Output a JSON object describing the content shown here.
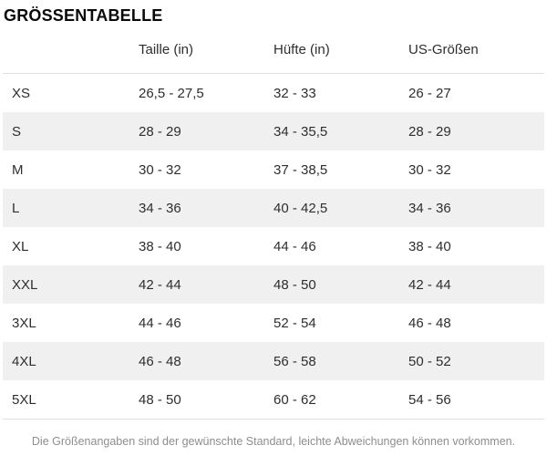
{
  "title": "GRÖSSENTABELLE",
  "table": {
    "columns": [
      "",
      "Taille (in)",
      "Hüfte (in)",
      "US-Größen"
    ],
    "rows": [
      {
        "size": "XS",
        "taille": "26,5 - 27,5",
        "huefte": "32 - 33",
        "us": "26 - 27"
      },
      {
        "size": "S",
        "taille": "28 - 29",
        "huefte": "34 - 35,5",
        "us": "28 - 29"
      },
      {
        "size": "M",
        "taille": "30 - 32",
        "huefte": "37 - 38,5",
        "us": "30 - 32"
      },
      {
        "size": "L",
        "taille": "34 - 36",
        "huefte": "40 - 42,5",
        "us": "34 - 36"
      },
      {
        "size": "XL",
        "taille": "38 - 40",
        "huefte": "44 - 46",
        "us": "38 - 40"
      },
      {
        "size": "XXL",
        "taille": "42 - 44",
        "huefte": "48 - 50",
        "us": "42 - 44"
      },
      {
        "size": "3XL",
        "taille": "44 - 46",
        "huefte": "52 - 54",
        "us": "46 - 48"
      },
      {
        "size": "4XL",
        "taille": "46 - 48",
        "huefte": "56 - 58",
        "us": "50 - 52"
      },
      {
        "size": "5XL",
        "taille": "48 - 50",
        "huefte": "60 - 62",
        "us": "54 - 56"
      }
    ]
  },
  "footnote": "Die Größenangaben sind der gewünschte Standard, leichte Abweichungen können vorkommen.",
  "colors": {
    "stripe": "#f0f0f0",
    "divider": "#dfdfdf",
    "text": "#2e2e2e",
    "title_text": "#0a0a0a",
    "footnote_text": "#8e8e8e",
    "background": "#ffffff"
  }
}
